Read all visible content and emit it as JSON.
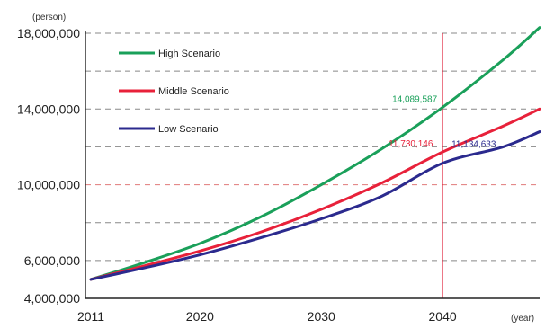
{
  "chart_data": {
    "type": "line",
    "ylabel": "(person)",
    "xlabel": "(year)",
    "xlim": [
      2011,
      2048
    ],
    "ylim": [
      4000000,
      18000000
    ],
    "x_ticks": [
      2011,
      2020,
      2030,
      2040
    ],
    "x_tick_labels": [
      "2011",
      "2020",
      "2030",
      "2040"
    ],
    "y_ticks": [
      4000000,
      6000000,
      10000000,
      14000000,
      18000000
    ],
    "y_tick_labels": [
      "4,000,000",
      "6,000,000",
      "10,000,000",
      "14,000,000",
      "18,000,000"
    ],
    "grid": "horizontal dashed every 2,000,000",
    "legend_position": "top-left",
    "x": [
      2011,
      2015,
      2020,
      2025,
      2030,
      2035,
      2040,
      2045,
      2048
    ],
    "series": [
      {
        "name": "High Scenario",
        "color": "#1aa05a",
        "values": [
          5000000,
          5800000,
          6900000,
          8300000,
          10000000,
          11900000,
          14089587,
          16600000,
          18300000
        ]
      },
      {
        "name": "Middle Scenario",
        "color": "#e8213a",
        "values": [
          5000000,
          5650000,
          6500000,
          7500000,
          8700000,
          10100000,
          11730146,
          13100000,
          14000000
        ]
      },
      {
        "name": "Low Scenario",
        "color": "#2b2a8e",
        "values": [
          5000000,
          5550000,
          6300000,
          7200000,
          8200000,
          9400000,
          11134633,
          12000000,
          12800000
        ]
      }
    ],
    "annotations": [
      {
        "text": "14,089,587",
        "x": 2040,
        "y": 14089587,
        "color": "#1aa05a"
      },
      {
        "text": "11,730,146",
        "x": 2040,
        "y": 11730146,
        "color": "#e8213a"
      },
      {
        "text": "11,134,633",
        "x": 2040,
        "y": 11134633,
        "color": "#2b2a8e"
      }
    ],
    "reference_line": {
      "x": 2040,
      "color": "#e0203a"
    }
  }
}
